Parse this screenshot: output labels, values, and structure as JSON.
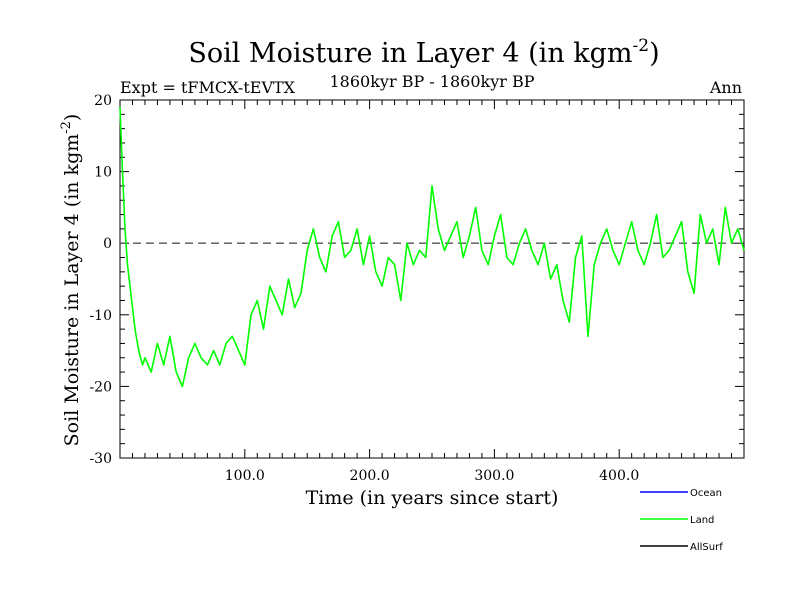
{
  "chart_data": {
    "type": "line",
    "title_main": "Soil Moisture in Layer 4 (in kgm",
    "title_sup": "-2",
    "title_close": ")",
    "subtitle_left": "Expt = tFMCX-tEVTX",
    "subtitle_center": "1860kyr BP - 1860kyr BP",
    "subtitle_right": "Ann",
    "xlabel": "Time (in years since start)",
    "ylabel_main": "Soil Moisture in Layer 4 (in kgm",
    "ylabel_sup": "-2",
    "ylabel_close": ")",
    "xlim": [
      0,
      500
    ],
    "ylim": [
      -30,
      20
    ],
    "xticks": [
      100,
      200,
      300,
      400
    ],
    "xtick_labels": [
      "100.0",
      "200.0",
      "300.0",
      "400.0"
    ],
    "yticks": [
      -30,
      -20,
      -10,
      0,
      10,
      20
    ],
    "ytick_labels": [
      "-30",
      "-20",
      "-10",
      "0",
      "10",
      "20"
    ],
    "reference_line": 0,
    "legend": [
      {
        "name": "Ocean",
        "color": "#0000ff"
      },
      {
        "name": "Land",
        "color": "#00ff00"
      },
      {
        "name": "AllSurf",
        "color": "#000000"
      }
    ],
    "series": [
      {
        "name": "Land",
        "color": "#00ff00",
        "x": [
          0,
          2,
          4,
          6,
          8,
          10,
          12,
          15,
          18,
          20,
          25,
          30,
          35,
          40,
          45,
          50,
          55,
          60,
          65,
          70,
          75,
          80,
          85,
          90,
          95,
          100,
          105,
          110,
          115,
          120,
          125,
          130,
          135,
          140,
          145,
          150,
          155,
          160,
          165,
          170,
          175,
          180,
          185,
          190,
          195,
          200,
          205,
          210,
          215,
          220,
          225,
          230,
          235,
          240,
          245,
          250,
          255,
          260,
          265,
          270,
          275,
          280,
          285,
          290,
          295,
          300,
          305,
          310,
          315,
          320,
          325,
          330,
          335,
          340,
          345,
          350,
          355,
          360,
          365,
          370,
          375,
          380,
          385,
          390,
          395,
          400,
          405,
          410,
          415,
          420,
          425,
          430,
          435,
          440,
          445,
          450,
          455,
          460,
          465,
          470,
          475,
          480,
          485,
          490,
          495,
          500
        ],
        "values": [
          19,
          10,
          2,
          -3,
          -6,
          -9,
          -12,
          -15,
          -17,
          -16,
          -18,
          -14,
          -17,
          -13,
          -18,
          -20,
          -16,
          -14,
          -16,
          -17,
          -15,
          -17,
          -14,
          -13,
          -15,
          -17,
          -10,
          -8,
          -12,
          -6,
          -8,
          -10,
          -5,
          -9,
          -7,
          -1,
          2,
          -2,
          -4,
          1,
          3,
          -2,
          -1,
          2,
          -3,
          1,
          -4,
          -6,
          -2,
          -3,
          -8,
          0,
          -3,
          -1,
          -2,
          8,
          2,
          -1,
          1,
          3,
          -2,
          1,
          5,
          -1,
          -3,
          1,
          4,
          -2,
          -3,
          0,
          2,
          -1,
          -3,
          0,
          -5,
          -3,
          -8,
          -11,
          -2,
          1,
          -13,
          -3,
          0,
          2,
          -1,
          -3,
          0,
          3,
          -1,
          -3,
          0,
          4,
          -2,
          -1,
          1,
          3,
          -4,
          -7,
          4,
          0,
          2,
          -3,
          5,
          0,
          2,
          -1
        ]
      }
    ]
  }
}
